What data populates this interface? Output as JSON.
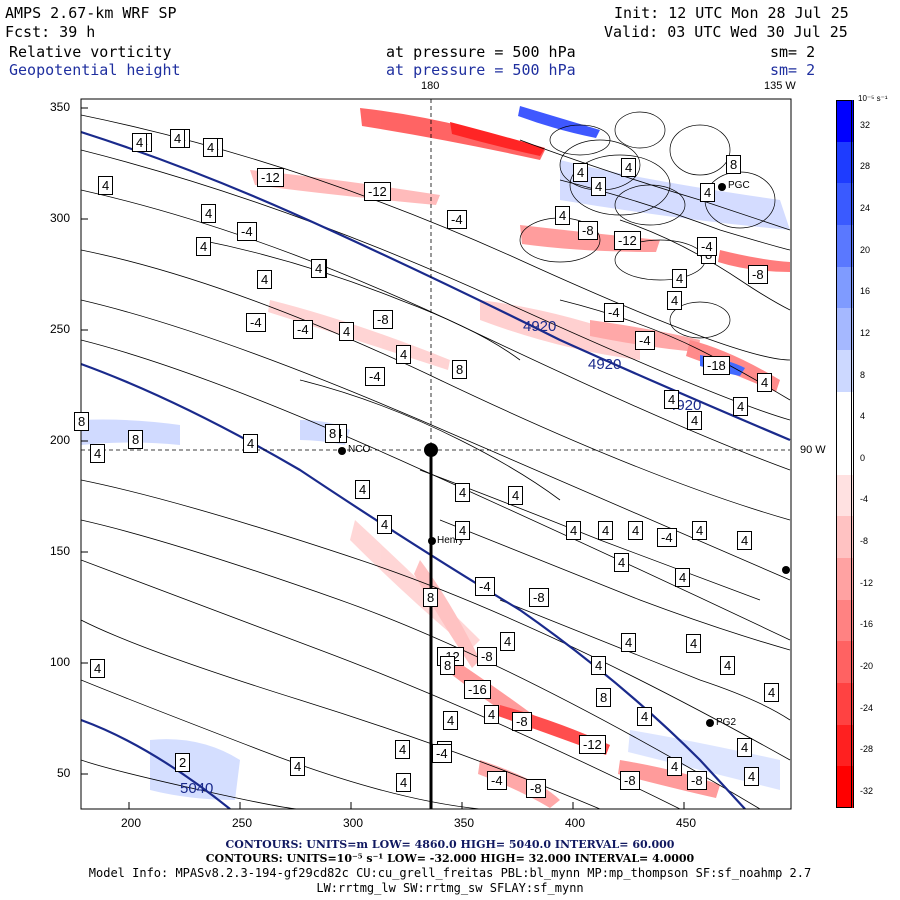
{
  "header": {
    "model": "AMPS 2.67-km WRF SP",
    "init": "Init: 12 UTC Mon 28 Jul 25",
    "fcst": "Fcst:   39 h",
    "valid": "Valid: 03 UTC Wed 30 Jul 25",
    "field1": "Relative vorticity",
    "field1_level": "at pressure =  500 hPa",
    "field1_sm": "sm= 2",
    "field2": "Geopotential height",
    "field2_level": "at pressure =  500 hPa",
    "field2_sm": "sm= 2"
  },
  "map": {
    "lon_labels": [
      "180",
      "135 W",
      "90 W"
    ],
    "x_ticks": [
      "200",
      "250",
      "300",
      "350",
      "400",
      "450"
    ],
    "y_ticks": [
      "350",
      "300",
      "250",
      "200",
      "150",
      "100",
      "50"
    ],
    "stations": [
      {
        "name": "NCO"
      },
      {
        "name": "Henry"
      },
      {
        "name": "PGC"
      },
      {
        "name": "PG2"
      }
    ],
    "height_labels": [
      "4920",
      "4920",
      "4920",
      "5040"
    ],
    "vort_labels": [
      "-4",
      "-4",
      "-4",
      "4",
      "-12",
      "-12",
      "4",
      "-4",
      "4",
      "4",
      "4",
      "-4",
      "-4",
      "-4",
      "4",
      "-8",
      "4",
      "-4",
      "8",
      "8",
      "8",
      "-4",
      "4",
      "4",
      "4",
      "4",
      "4",
      "4",
      "4",
      "4",
      "4",
      "4",
      "-4",
      "4",
      "4",
      "4",
      "8",
      "-4",
      "-8",
      "-8",
      "-12",
      "-16",
      "-8",
      "-12",
      "-4",
      "-18",
      "4",
      "4",
      "4",
      "-12",
      "8",
      "4",
      "8",
      "4",
      "4",
      "4",
      "4",
      "4",
      "8",
      "4",
      "4",
      "4",
      "4",
      "4",
      "4",
      "4",
      "4",
      "4",
      "4",
      "4",
      "4",
      "4",
      "-4",
      "-4",
      "-8",
      "-8",
      "-8",
      "2",
      "8",
      "8",
      "-8",
      "-4",
      "-4",
      "-8",
      "4",
      "4",
      "4",
      "4",
      "4",
      "4",
      "4",
      "4",
      "4",
      "4",
      "4",
      "4"
    ]
  },
  "colorbar": {
    "units": "10⁻⁵ s⁻¹",
    "labels": [
      "32",
      "28",
      "24",
      "20",
      "16",
      "12",
      "8",
      "4",
      "0",
      "-4",
      "-8",
      "-12",
      "-16",
      "-20",
      "-24",
      "-28",
      "-32"
    ],
    "colors": [
      "#0000ff",
      "#1e3cff",
      "#3a5aff",
      "#5a78ff",
      "#7f9bff",
      "#a5b8ff",
      "#ccd8ff",
      "#ffffff",
      "#ffffff",
      "#ffe1e1",
      "#ffc2c2",
      "#ffa2a2",
      "#ff8282",
      "#ff6262",
      "#ff4242",
      "#ff2020",
      "#ff0000"
    ]
  },
  "footer": {
    "line1": "CONTOURS:  UNITS=m  LOW=  4860.0         HIGH=  5040.0       INTERVAL=   60.000",
    "line2": "CONTOURS:  UNITS=10⁻⁵ s⁻¹  LOW= -32.000        HIGH=  32.000       INTERVAL=   4.0000",
    "line3": "Model Info: MPASv8.2.3-194-gf29cd82c CU:cu_grell_freitas PBL:bl_mynn MP:mp_thompson SF:sf_noahmp 2.7",
    "line4": "LW:rrtmg_lw SW:rrtmg_sw SFLAY:sf_mynn"
  }
}
